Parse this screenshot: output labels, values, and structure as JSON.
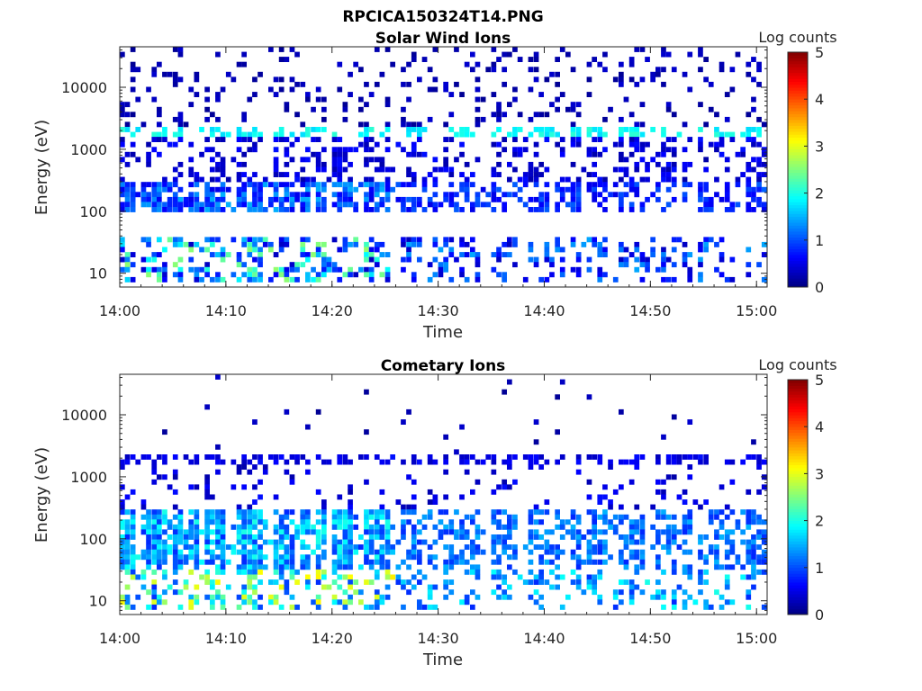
{
  "figure": {
    "title": "RPCICA150324T14.PNG"
  },
  "chart_data": [
    {
      "type": "heatmap",
      "title": "Solar Wind Ions",
      "xlabel": "Time",
      "ylabel": "Energy (eV)",
      "x_ticks": [
        "14:00",
        "14:10",
        "14:20",
        "14:30",
        "14:40",
        "14:50",
        "15:00"
      ],
      "x_range": [
        "14:00",
        "15:01"
      ],
      "y_scale": "log",
      "y_ticks": [
        10,
        100,
        1000,
        10000
      ],
      "y_tick_labels": [
        "10",
        "100",
        "1000",
        "10000"
      ],
      "y_range": [
        6,
        45000
      ],
      "colorbar": {
        "label": "Log counts",
        "range": [
          0,
          5
        ],
        "ticks": [
          "0",
          "1",
          "2",
          "3",
          "4",
          "5"
        ],
        "colormap": "jet"
      },
      "features": {
        "main_band_eV": [
          90,
          300
        ],
        "main_band_level": [
          0.5,
          1.5
        ],
        "line_eV": 2000,
        "line_level": 1.9,
        "low_energy_eV": [
          7,
          40
        ],
        "low_energy_level": [
          0.3,
          2.6
        ],
        "active_until": "14:26"
      }
    },
    {
      "type": "heatmap",
      "title": "Cometary Ions",
      "xlabel": "Time",
      "ylabel": "Energy (eV)",
      "x_ticks": [
        "14:00",
        "14:10",
        "14:20",
        "14:30",
        "14:40",
        "14:50",
        "15:00"
      ],
      "x_range": [
        "14:00",
        "15:01"
      ],
      "y_scale": "log",
      "y_ticks": [
        10,
        100,
        1000,
        10000
      ],
      "y_tick_labels": [
        "10",
        "100",
        "1000",
        "10000"
      ],
      "y_range": [
        6,
        45000
      ],
      "colorbar": {
        "label": "Log counts",
        "range": [
          0,
          5
        ],
        "ticks": [
          "0",
          "1",
          "2",
          "3",
          "4",
          "5"
        ],
        "colormap": "jet"
      },
      "features": {
        "main_band_eV": [
          30,
          300
        ],
        "main_band_level": [
          0.8,
          2.0
        ],
        "line_eV": 2000,
        "line_level": 0.5,
        "low_energy_eV": [
          7,
          30
        ],
        "low_energy_level": [
          0.8,
          3.2
        ],
        "active_until": "14:26"
      }
    }
  ]
}
